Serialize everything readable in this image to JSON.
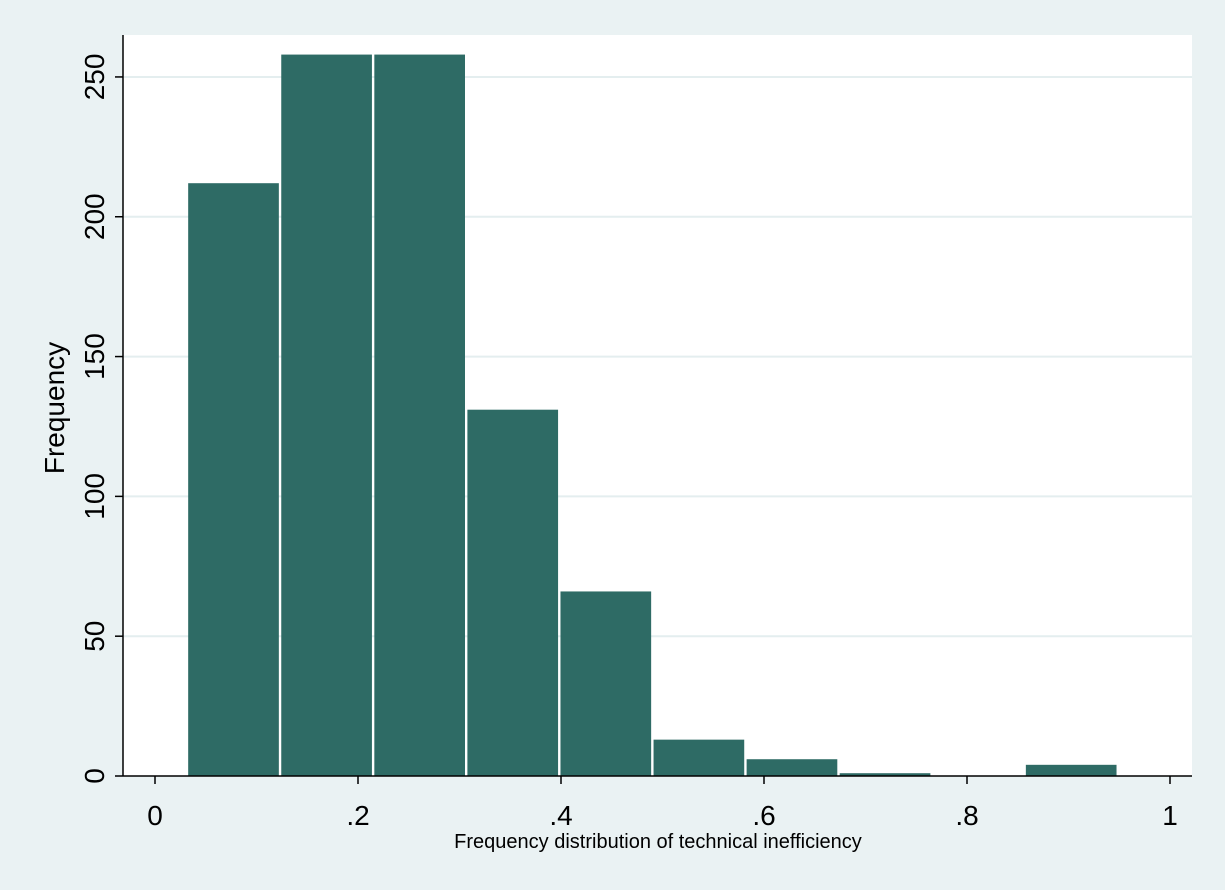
{
  "chart_data": {
    "type": "bar",
    "xlabel": "Frequency distribution of technical inefficiency",
    "ylabel": "Frequency",
    "xlim": [
      0,
      1
    ],
    "ylim": [
      0,
      265
    ],
    "grid": true,
    "xticks": [
      {
        "value": 0,
        "label": "0"
      },
      {
        "value": 0.2,
        "label": ".2"
      },
      {
        "value": 0.4,
        "label": ".4"
      },
      {
        "value": 0.6,
        "label": ".6"
      },
      {
        "value": 0.8,
        "label": ".8"
      },
      {
        "value": 1,
        "label": "1"
      }
    ],
    "yticks": [
      {
        "value": 0,
        "label": "0"
      },
      {
        "value": 50,
        "label": "50"
      },
      {
        "value": 100,
        "label": "100"
      },
      {
        "value": 150,
        "label": "150"
      },
      {
        "value": 200,
        "label": "200"
      },
      {
        "value": 250,
        "label": "250"
      }
    ],
    "bins": [
      {
        "start": 0.0315,
        "end": 0.1232,
        "value": 212
      },
      {
        "start": 0.1232,
        "end": 0.2149,
        "value": 258
      },
      {
        "start": 0.2149,
        "end": 0.3066,
        "value": 258
      },
      {
        "start": 0.3066,
        "end": 0.3983,
        "value": 131
      },
      {
        "start": 0.3983,
        "end": 0.49,
        "value": 66
      },
      {
        "start": 0.49,
        "end": 0.5817,
        "value": 13
      },
      {
        "start": 0.5817,
        "end": 0.6734,
        "value": 6
      },
      {
        "start": 0.6734,
        "end": 0.7651,
        "value": 1
      },
      {
        "start": 0.7651,
        "end": 0.8568,
        "value": 0
      },
      {
        "start": 0.8568,
        "end": 0.9485,
        "value": 4
      }
    ],
    "colors": {
      "bar": "#2e6b65",
      "background": "#eaf2f3",
      "plot_background": "#ffffff",
      "grid": "#e4eeef"
    }
  }
}
